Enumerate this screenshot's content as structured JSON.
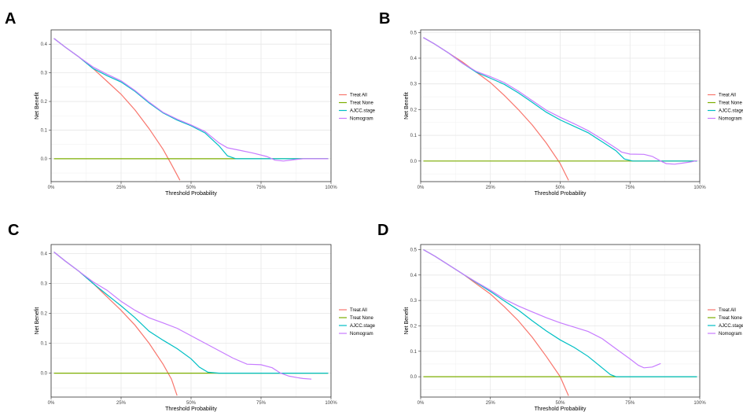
{
  "chart_data": [
    {
      "panel": "A",
      "type": "line",
      "xlabel": "Threshold Probability",
      "ylabel": "Net Benefit",
      "xlim": [
        0,
        1
      ],
      "ylim": [
        -0.08,
        0.45
      ],
      "xticks": [
        0,
        0.25,
        0.5,
        0.75,
        1
      ],
      "xtick_labels": [
        "0%",
        "25%",
        "50%",
        "75%",
        "100%"
      ],
      "yticks": [
        0,
        0.1,
        0.2,
        0.3,
        0.4
      ],
      "ytick_labels": [
        "0.0",
        "0.1",
        "0.2",
        "0.3",
        "0.4"
      ],
      "legend_position": "right",
      "series": [
        {
          "name": "Treat All",
          "color": "#F8766D",
          "points": [
            [
              0.01,
              0.42
            ],
            [
              0.05,
              0.39
            ],
            [
              0.1,
              0.355
            ],
            [
              0.15,
              0.315
            ],
            [
              0.2,
              0.27
            ],
            [
              0.25,
              0.225
            ],
            [
              0.3,
              0.17
            ],
            [
              0.35,
              0.105
            ],
            [
              0.4,
              0.033
            ],
            [
              0.43,
              -0.02
            ],
            [
              0.46,
              -0.075
            ]
          ]
        },
        {
          "name": "Treat None",
          "color": "#7CAE00",
          "points": [
            [
              0.01,
              0.0
            ],
            [
              0.99,
              0.0
            ]
          ]
        },
        {
          "name": "AJCC.stage",
          "color": "#00BFC4",
          "points": [
            [
              0.01,
              0.42
            ],
            [
              0.05,
              0.39
            ],
            [
              0.1,
              0.355
            ],
            [
              0.15,
              0.315
            ],
            [
              0.2,
              0.29
            ],
            [
              0.25,
              0.268
            ],
            [
              0.3,
              0.235
            ],
            [
              0.35,
              0.195
            ],
            [
              0.4,
              0.16
            ],
            [
              0.45,
              0.135
            ],
            [
              0.5,
              0.115
            ],
            [
              0.55,
              0.09
            ],
            [
              0.6,
              0.045
            ],
            [
              0.63,
              0.01
            ],
            [
              0.66,
              0.0
            ],
            [
              0.7,
              0.0
            ],
            [
              0.99,
              0.0
            ]
          ]
        },
        {
          "name": "Nomogram",
          "color": "#C77CFF",
          "points": [
            [
              0.01,
              0.42
            ],
            [
              0.05,
              0.39
            ],
            [
              0.1,
              0.355
            ],
            [
              0.15,
              0.32
            ],
            [
              0.2,
              0.295
            ],
            [
              0.25,
              0.272
            ],
            [
              0.3,
              0.238
            ],
            [
              0.35,
              0.198
            ],
            [
              0.4,
              0.162
            ],
            [
              0.45,
              0.138
            ],
            [
              0.5,
              0.118
            ],
            [
              0.55,
              0.095
            ],
            [
              0.6,
              0.055
            ],
            [
              0.63,
              0.038
            ],
            [
              0.67,
              0.03
            ],
            [
              0.72,
              0.02
            ],
            [
              0.77,
              0.008
            ],
            [
              0.8,
              -0.005
            ],
            [
              0.83,
              -0.008
            ],
            [
              0.87,
              -0.003
            ],
            [
              0.9,
              0.0
            ],
            [
              0.99,
              0.0
            ]
          ]
        }
      ]
    },
    {
      "panel": "B",
      "type": "line",
      "xlabel": "Threshold Probability",
      "ylabel": "Net Benefit",
      "xlim": [
        0,
        1
      ],
      "ylim": [
        -0.08,
        0.51
      ],
      "xticks": [
        0,
        0.25,
        0.5,
        0.75,
        1
      ],
      "xtick_labels": [
        "0%",
        "25%",
        "50%",
        "75%",
        "100%"
      ],
      "yticks": [
        0,
        0.1,
        0.2,
        0.3,
        0.4,
        0.5
      ],
      "ytick_labels": [
        "0.0",
        "0.1",
        "0.2",
        "0.3",
        "0.4",
        "0.5"
      ],
      "legend_position": "right",
      "series": [
        {
          "name": "Treat All",
          "color": "#F8766D",
          "points": [
            [
              0.01,
              0.48
            ],
            [
              0.05,
              0.455
            ],
            [
              0.1,
              0.42
            ],
            [
              0.15,
              0.385
            ],
            [
              0.2,
              0.345
            ],
            [
              0.25,
              0.305
            ],
            [
              0.3,
              0.255
            ],
            [
              0.35,
              0.2
            ],
            [
              0.4,
              0.14
            ],
            [
              0.45,
              0.07
            ],
            [
              0.5,
              -0.01
            ],
            [
              0.53,
              -0.075
            ]
          ]
        },
        {
          "name": "Treat None",
          "color": "#7CAE00",
          "points": [
            [
              0.01,
              0.0
            ],
            [
              0.99,
              0.0
            ]
          ]
        },
        {
          "name": "AJCC.stage",
          "color": "#00BFC4",
          "points": [
            [
              0.01,
              0.48
            ],
            [
              0.05,
              0.455
            ],
            [
              0.1,
              0.42
            ],
            [
              0.15,
              0.38
            ],
            [
              0.2,
              0.345
            ],
            [
              0.25,
              0.322
            ],
            [
              0.3,
              0.298
            ],
            [
              0.35,
              0.265
            ],
            [
              0.4,
              0.228
            ],
            [
              0.45,
              0.19
            ],
            [
              0.5,
              0.16
            ],
            [
              0.55,
              0.135
            ],
            [
              0.6,
              0.11
            ],
            [
              0.65,
              0.075
            ],
            [
              0.7,
              0.04
            ],
            [
              0.73,
              0.008
            ],
            [
              0.76,
              0.0
            ],
            [
              0.8,
              0.0
            ],
            [
              0.99,
              0.0
            ]
          ]
        },
        {
          "name": "Nomogram",
          "color": "#C77CFF",
          "points": [
            [
              0.01,
              0.48
            ],
            [
              0.05,
              0.455
            ],
            [
              0.1,
              0.42
            ],
            [
              0.15,
              0.38
            ],
            [
              0.2,
              0.348
            ],
            [
              0.25,
              0.328
            ],
            [
              0.3,
              0.305
            ],
            [
              0.35,
              0.272
            ],
            [
              0.4,
              0.235
            ],
            [
              0.45,
              0.198
            ],
            [
              0.5,
              0.17
            ],
            [
              0.55,
              0.145
            ],
            [
              0.6,
              0.118
            ],
            [
              0.65,
              0.085
            ],
            [
              0.7,
              0.05
            ],
            [
              0.72,
              0.035
            ],
            [
              0.75,
              0.027
            ],
            [
              0.8,
              0.026
            ],
            [
              0.83,
              0.018
            ],
            [
              0.86,
              0.0
            ],
            [
              0.88,
              -0.01
            ],
            [
              0.91,
              -0.012
            ],
            [
              0.94,
              -0.008
            ],
            [
              0.97,
              -0.003
            ],
            [
              0.99,
              0.002
            ]
          ]
        }
      ]
    },
    {
      "panel": "C",
      "type": "line",
      "xlabel": "Threshold Probability",
      "ylabel": "Net Benefit",
      "xlim": [
        0,
        1
      ],
      "ylim": [
        -0.08,
        0.43
      ],
      "xticks": [
        0,
        0.25,
        0.5,
        0.75,
        1
      ],
      "xtick_labels": [
        "0%",
        "25%",
        "50%",
        "75%",
        "100%"
      ],
      "yticks": [
        0,
        0.1,
        0.2,
        0.3,
        0.4
      ],
      "ytick_labels": [
        "0.0",
        "0.1",
        "0.2",
        "0.3",
        "0.4"
      ],
      "legend_position": "right",
      "series": [
        {
          "name": "Treat All",
          "color": "#F8766D",
          "points": [
            [
              0.01,
              0.405
            ],
            [
              0.05,
              0.375
            ],
            [
              0.1,
              0.34
            ],
            [
              0.15,
              0.3
            ],
            [
              0.2,
              0.255
            ],
            [
              0.25,
              0.21
            ],
            [
              0.3,
              0.16
            ],
            [
              0.35,
              0.1
            ],
            [
              0.4,
              0.03
            ],
            [
              0.43,
              -0.02
            ],
            [
              0.45,
              -0.075
            ]
          ]
        },
        {
          "name": "Treat None",
          "color": "#7CAE00",
          "points": [
            [
              0.01,
              0.0
            ],
            [
              0.99,
              0.0
            ]
          ]
        },
        {
          "name": "AJCC.stage",
          "color": "#00BFC4",
          "points": [
            [
              0.01,
              0.405
            ],
            [
              0.05,
              0.375
            ],
            [
              0.1,
              0.34
            ],
            [
              0.15,
              0.3
            ],
            [
              0.2,
              0.262
            ],
            [
              0.25,
              0.225
            ],
            [
              0.3,
              0.185
            ],
            [
              0.35,
              0.14
            ],
            [
              0.4,
              0.11
            ],
            [
              0.45,
              0.082
            ],
            [
              0.5,
              0.048
            ],
            [
              0.53,
              0.02
            ],
            [
              0.56,
              0.003
            ],
            [
              0.6,
              0.0
            ],
            [
              0.65,
              0.0
            ],
            [
              0.99,
              0.0
            ]
          ]
        },
        {
          "name": "Nomogram",
          "color": "#C77CFF",
          "points": [
            [
              0.01,
              0.405
            ],
            [
              0.05,
              0.375
            ],
            [
              0.1,
              0.34
            ],
            [
              0.15,
              0.305
            ],
            [
              0.2,
              0.277
            ],
            [
              0.25,
              0.24
            ],
            [
              0.3,
              0.21
            ],
            [
              0.35,
              0.185
            ],
            [
              0.4,
              0.168
            ],
            [
              0.45,
              0.15
            ],
            [
              0.5,
              0.125
            ],
            [
              0.55,
              0.1
            ],
            [
              0.6,
              0.075
            ],
            [
              0.65,
              0.05
            ],
            [
              0.7,
              0.03
            ],
            [
              0.75,
              0.028
            ],
            [
              0.79,
              0.018
            ],
            [
              0.82,
              0.0
            ],
            [
              0.85,
              -0.01
            ],
            [
              0.88,
              -0.015
            ],
            [
              0.9,
              -0.018
            ],
            [
              0.93,
              -0.02
            ]
          ]
        }
      ]
    },
    {
      "panel": "D",
      "type": "line",
      "xlabel": "Threshold Probability",
      "ylabel": "Net Benefit",
      "xlim": [
        0,
        1
      ],
      "ylim": [
        -0.08,
        0.52
      ],
      "xticks": [
        0,
        0.25,
        0.5,
        0.75,
        1
      ],
      "xtick_labels": [
        "0%",
        "25%",
        "50%",
        "75%",
        "100%"
      ],
      "yticks": [
        0,
        0.1,
        0.2,
        0.3,
        0.4,
        0.5
      ],
      "ytick_labels": [
        "0.0",
        "0.1",
        "0.2",
        "0.3",
        "0.4",
        "0.5"
      ],
      "legend_position": "right",
      "series": [
        {
          "name": "Treat All",
          "color": "#F8766D",
          "points": [
            [
              0.01,
              0.5
            ],
            [
              0.05,
              0.475
            ],
            [
              0.1,
              0.44
            ],
            [
              0.15,
              0.405
            ],
            [
              0.2,
              0.365
            ],
            [
              0.25,
              0.325
            ],
            [
              0.3,
              0.275
            ],
            [
              0.35,
              0.22
            ],
            [
              0.4,
              0.155
            ],
            [
              0.45,
              0.08
            ],
            [
              0.5,
              0.0
            ],
            [
              0.53,
              -0.075
            ]
          ]
        },
        {
          "name": "Treat None",
          "color": "#7CAE00",
          "points": [
            [
              0.01,
              0.0
            ],
            [
              0.99,
              0.0
            ]
          ]
        },
        {
          "name": "AJCC.stage",
          "color": "#00BFC4",
          "points": [
            [
              0.01,
              0.5
            ],
            [
              0.05,
              0.475
            ],
            [
              0.1,
              0.44
            ],
            [
              0.15,
              0.405
            ],
            [
              0.2,
              0.37
            ],
            [
              0.25,
              0.335
            ],
            [
              0.3,
              0.298
            ],
            [
              0.35,
              0.262
            ],
            [
              0.4,
              0.22
            ],
            [
              0.45,
              0.18
            ],
            [
              0.5,
              0.145
            ],
            [
              0.55,
              0.115
            ],
            [
              0.6,
              0.08
            ],
            [
              0.65,
              0.035
            ],
            [
              0.68,
              0.008
            ],
            [
              0.7,
              0.0
            ],
            [
              0.75,
              0.0
            ],
            [
              0.99,
              0.0
            ]
          ]
        },
        {
          "name": "Nomogram",
          "color": "#C77CFF",
          "points": [
            [
              0.01,
              0.5
            ],
            [
              0.05,
              0.475
            ],
            [
              0.1,
              0.44
            ],
            [
              0.15,
              0.405
            ],
            [
              0.2,
              0.372
            ],
            [
              0.25,
              0.34
            ],
            [
              0.3,
              0.305
            ],
            [
              0.35,
              0.278
            ],
            [
              0.4,
              0.255
            ],
            [
              0.45,
              0.232
            ],
            [
              0.5,
              0.212
            ],
            [
              0.55,
              0.195
            ],
            [
              0.6,
              0.178
            ],
            [
              0.65,
              0.15
            ],
            [
              0.7,
              0.11
            ],
            [
              0.75,
              0.07
            ],
            [
              0.78,
              0.045
            ],
            [
              0.8,
              0.035
            ],
            [
              0.83,
              0.038
            ],
            [
              0.86,
              0.052
            ]
          ]
        }
      ]
    }
  ]
}
